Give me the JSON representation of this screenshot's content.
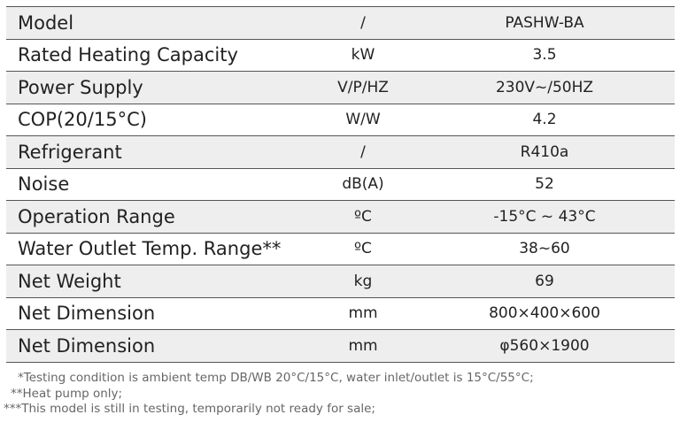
{
  "table": {
    "rows": [
      [
        "Model",
        "/",
        "PASHW-BA"
      ],
      [
        "Rated Heating Capacity",
        "kW",
        "3.5"
      ],
      [
        "Power Supply",
        "V/P/HZ",
        "230V~/50HZ"
      ],
      [
        "COP(20/15°C)",
        "W/W",
        "4.2"
      ],
      [
        "Refrigerant",
        "/",
        "R410a"
      ],
      [
        "Noise",
        "dB(A)",
        "52"
      ],
      [
        "Operation Range",
        "ºC",
        "-15°C ~ 43°C"
      ],
      [
        "Water Outlet Temp. Range**",
        "ºC",
        "38~60"
      ],
      [
        "Net Weight",
        "kg",
        "69"
      ],
      [
        "Net Dimension",
        "mm",
        "800×400×600"
      ],
      [
        "Net Dimension",
        "mm",
        "φ560×1900"
      ]
    ]
  },
  "notes": [
    "*Testing condition is ambient temp DB/WB 20°C/15°C, water inlet/outlet is 15°C/55°C;",
    "**Heat pump only;",
    "***This model is still in testing, temporarily not ready for sale;"
  ]
}
